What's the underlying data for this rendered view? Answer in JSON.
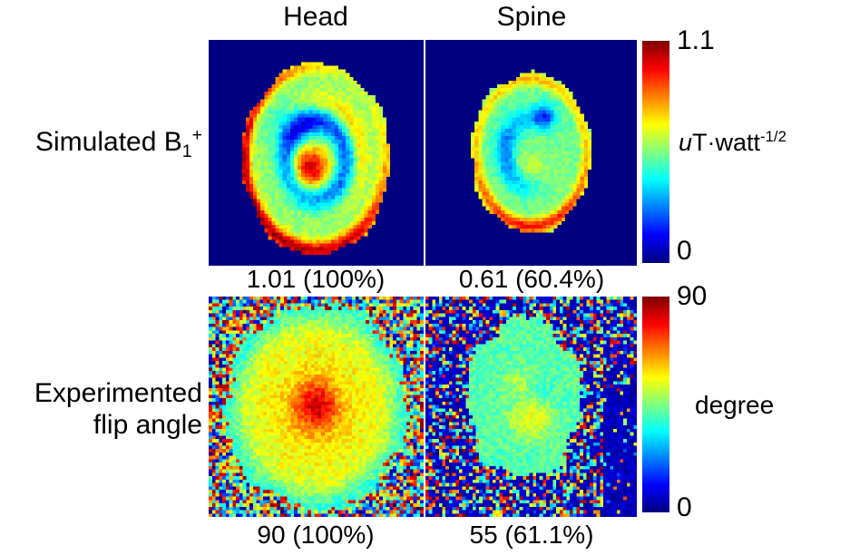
{
  "columns": [
    "Head",
    "Spine"
  ],
  "row_labels": {
    "simulated": {
      "prefix": "Simulated B",
      "sub": "1",
      "sup": "+"
    },
    "experimented": {
      "line1": "Experimented",
      "line2": "flip angle"
    }
  },
  "captions": {
    "sim_head": "1.01 (100%)",
    "sim_spine": "0.61 (60.4%)",
    "exp_head": "90 (100%)",
    "exp_spine": "55 (61.1%)"
  },
  "colorbars": {
    "top": {
      "max": "1.1",
      "min": "0",
      "unit_italic": "u",
      "unit_text": "T·watt",
      "unit_sup": "-1/2"
    },
    "bottom": {
      "max": "90",
      "min": "0",
      "unit": "degree"
    }
  },
  "colors": {
    "figure_background": "#ffffff",
    "text": "#000000",
    "colormap_min_dark_blue": "#00007f",
    "colormap_max_dark_red": "#7f0000"
  },
  "chart_data": {
    "type": "heatmap",
    "colormap": "jet",
    "rows": [
      "Simulated B1+",
      "Experimented flip angle"
    ],
    "columns": [
      "Head",
      "Spine"
    ],
    "colorbar_scales": [
      {
        "applies_to_row": "Simulated B1+",
        "range": [
          0,
          1.1
        ],
        "unit": "uT·watt^-1/2"
      },
      {
        "applies_to_row": "Experimented flip angle",
        "range": [
          0,
          90
        ],
        "unit": "degree"
      }
    ],
    "panels": [
      {
        "id": "sim-head",
        "row": "Simulated B1+",
        "column": "Head",
        "reported_value": "1.01",
        "reported_percent": "100%",
        "render": {
          "grid": [
            58,
            61
          ],
          "seed": 7,
          "background": {
            "mode": "flat",
            "value": 0
          },
          "mask": {
            "cx": 0.5,
            "cy": 0.53,
            "rx": 0.345,
            "ry": 0.425,
            "edge_noise": 0.035
          },
          "base": 0.52,
          "noise": 0.045,
          "features": [
            {
              "type": "blob",
              "cx": 0.47,
              "cy": 0.57,
              "rx": 0.085,
              "ry": 0.105,
              "amp": 0.4
            },
            {
              "type": "ring",
              "r0": 0.4,
              "width": 0.14,
              "amp": -0.3
            },
            {
              "type": "blob",
              "cx": 0.4,
              "cy": 0.38,
              "rx": 0.13,
              "ry": 0.1,
              "amp": -0.16
            },
            {
              "type": "ring",
              "r0": 0.6,
              "width": 0.13,
              "amp": 0.16,
              "angle": -0.7,
              "spread": 2
            },
            {
              "type": "ring",
              "r0": 0.95,
              "width": 0.1,
              "amp": 0.42,
              "angle": 1.55,
              "spread": 1.3
            },
            {
              "type": "ring",
              "r0": 0.97,
              "width": 0.07,
              "amp": 0.3,
              "angle": 3.6,
              "spread": 2.5
            }
          ]
        }
      },
      {
        "id": "sim-spine",
        "row": "Simulated B1+",
        "column": "Spine",
        "reported_value": "0.61",
        "reported_percent": "60.4%",
        "render": {
          "grid": [
            56,
            61
          ],
          "seed": 11,
          "background": {
            "mode": "flat",
            "value": 0
          },
          "mask": {
            "cx": 0.5,
            "cy": 0.5,
            "rx": 0.285,
            "ry": 0.355,
            "edge_noise": 0.04
          },
          "base": 0.47,
          "noise": 0.04,
          "features": [
            {
              "type": "ring",
              "r0": 0.42,
              "width": 0.16,
              "amp": -0.26,
              "angle": 2.9,
              "spread": 1.2
            },
            {
              "type": "blob",
              "cx": 0.56,
              "cy": 0.34,
              "rx": 0.055,
              "ry": 0.05,
              "amp": -0.3
            },
            {
              "type": "blob",
              "cx": 0.5,
              "cy": 0.6,
              "rx": 0.14,
              "ry": 0.12,
              "amp": 0.1
            },
            {
              "type": "ring",
              "r0": 0.92,
              "width": 0.1,
              "amp": 0.4,
              "angle": 1.57,
              "spread": 1.4
            },
            {
              "type": "ring",
              "r0": 0.92,
              "width": 0.09,
              "amp": 0.22,
              "angle": -1.57,
              "spread": 2.0
            }
          ]
        }
      },
      {
        "id": "exp-head",
        "row": "Experimented flip angle",
        "column": "Head",
        "reported_value": "90",
        "reported_percent": "100%",
        "render": {
          "grid": [
            63,
            65
          ],
          "seed": 23,
          "background": {
            "mode": "noise",
            "dark_bias": 0.0
          },
          "mask": {
            "cx": 0.5,
            "cy": 0.5,
            "rx": 0.425,
            "ry": 0.465,
            "edge_noise": 0.05
          },
          "base": 0.6,
          "noise": 0.06,
          "features": [
            {
              "type": "blob",
              "cx": 0.5,
              "cy": 0.5,
              "rx": 0.1,
              "ry": 0.11,
              "amp": 0.26
            },
            {
              "type": "blob",
              "cx": 0.5,
              "cy": 0.5,
              "rx": 0.22,
              "ry": 0.24,
              "amp": 0.06
            },
            {
              "type": "ring",
              "r0": 1.0,
              "width": 0.18,
              "amp": -0.18
            }
          ]
        }
      },
      {
        "id": "exp-spine",
        "row": "Experimented flip angle",
        "column": "Spine",
        "reported_value": "55",
        "reported_percent": "61.1%",
        "render": {
          "grid": [
            63,
            65
          ],
          "seed": 31,
          "background": {
            "mode": "noise",
            "dark_bias": 0.45,
            "corner_dark": true
          },
          "mask": {
            "cx": 0.47,
            "cy": 0.46,
            "rx": 0.27,
            "ry": 0.36,
            "edge_noise": 0.1
          },
          "base": 0.46,
          "noise": 0.055,
          "features": [
            {
              "type": "blob",
              "cx": 0.5,
              "cy": 0.55,
              "rx": 0.1,
              "ry": 0.09,
              "amp": 0.16
            },
            {
              "type": "blob",
              "cx": 0.44,
              "cy": 0.38,
              "rx": 0.07,
              "ry": 0.06,
              "amp": 0.08
            },
            {
              "type": "blob",
              "cx": 0.55,
              "cy": 0.44,
              "rx": 0.05,
              "ry": 0.05,
              "amp": -0.06
            }
          ]
        }
      }
    ]
  }
}
